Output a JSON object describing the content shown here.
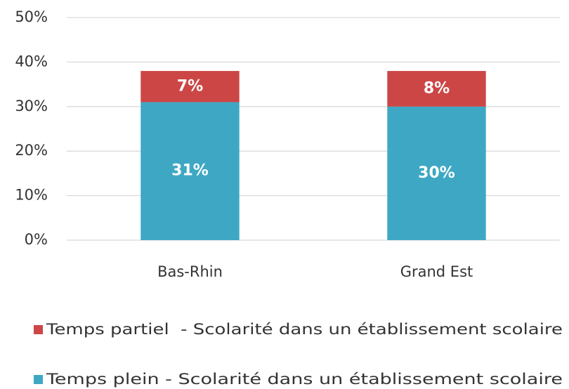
{
  "chart_data": {
    "type": "stacked_bar",
    "categories": [
      "Bas-Rhin",
      "Grand Est"
    ],
    "series": [
      {
        "name": "Temps plein - Scolarité dans un établissement scolaire",
        "color": "#3ea8c4",
        "values": [
          31,
          30
        ],
        "value_labels": [
          "31%",
          "30%"
        ]
      },
      {
        "name": "Temps partiel  - Scolarité dans un établissement scolaire",
        "color": "#cc4646",
        "values": [
          7,
          8
        ],
        "value_labels": [
          "7%",
          "8%"
        ]
      }
    ],
    "ylim": [
      0,
      50
    ],
    "yticks": [
      {
        "value": 0,
        "label": "0%"
      },
      {
        "value": 10,
        "label": "10%"
      },
      {
        "value": 20,
        "label": "20%"
      },
      {
        "value": 30,
        "label": "30%"
      },
      {
        "value": 40,
        "label": "40%"
      },
      {
        "value": 50,
        "label": "50%"
      }
    ],
    "grid": true,
    "legend": "bottom"
  }
}
